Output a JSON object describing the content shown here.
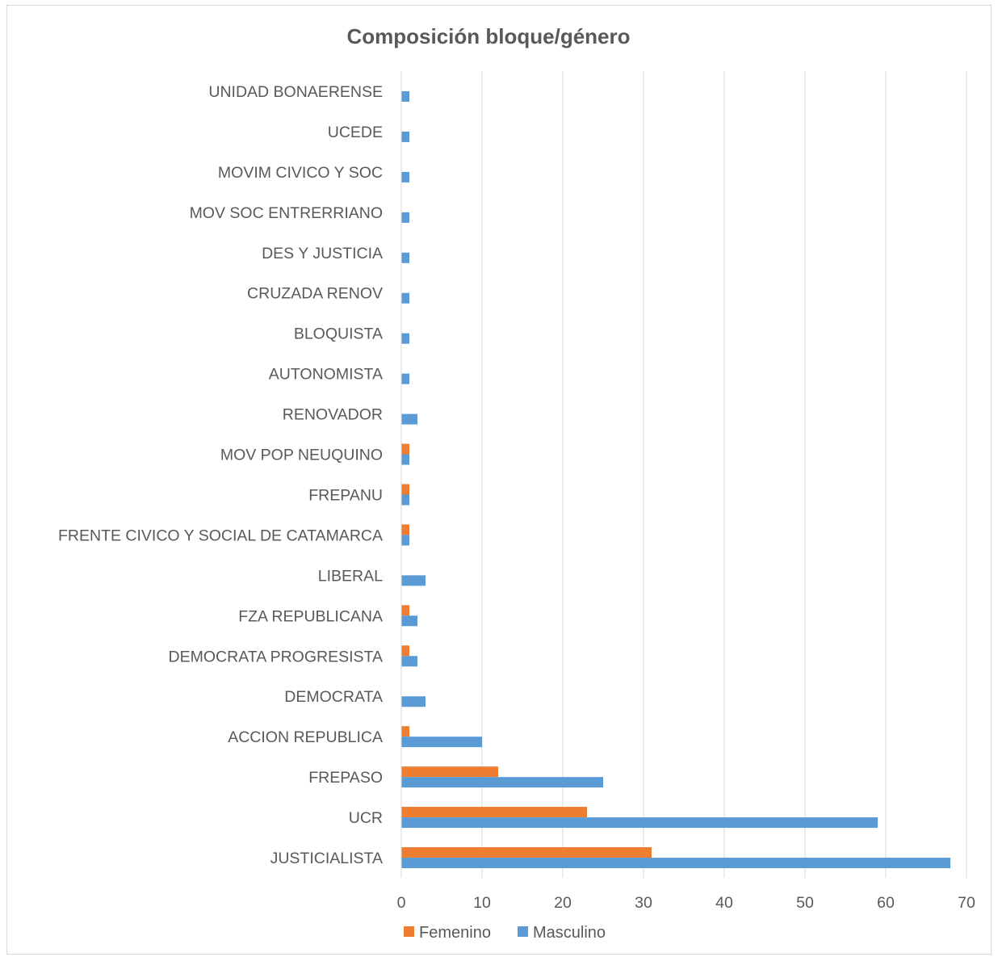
{
  "chart_data": {
    "type": "bar",
    "orientation": "horizontal",
    "title": "Composición bloque/género",
    "categories": [
      "JUSTICIALISTA",
      "UCR",
      "FREPASO",
      "ACCION REPUBLICA",
      "DEMOCRATA",
      "DEMOCRATA PROGRESISTA",
      "FZA REPUBLICANA",
      "LIBERAL",
      "FRENTE CIVICO Y SOCIAL DE CATAMARCA",
      "FREPANU",
      "MOV POP NEUQUINO",
      "RENOVADOR",
      "AUTONOMISTA",
      "BLOQUISTA",
      "CRUZADA RENOV",
      "DES Y JUSTICIA",
      "MOV SOC ENTRERRIANO",
      "MOVIM CIVICO Y SOC",
      "UCEDE",
      "UNIDAD BONAERENSE"
    ],
    "series": [
      {
        "name": "Femenino",
        "color": "#ED7D31",
        "values": [
          31,
          23,
          12,
          1,
          0,
          1,
          1,
          0,
          1,
          1,
          1,
          0,
          0,
          0,
          0,
          0,
          0,
          0,
          0,
          0
        ]
      },
      {
        "name": "Masculino",
        "color": "#5B9BD5",
        "values": [
          68,
          59,
          25,
          10,
          3,
          2,
          2,
          3,
          1,
          1,
          1,
          2,
          1,
          1,
          1,
          1,
          1,
          1,
          1,
          1
        ]
      }
    ],
    "xlim": [
      0,
      70
    ],
    "xticks": [
      "0",
      "10",
      "20",
      "30",
      "40",
      "50",
      "60",
      "70"
    ],
    "grid": "vertical",
    "legend": "bottom"
  }
}
